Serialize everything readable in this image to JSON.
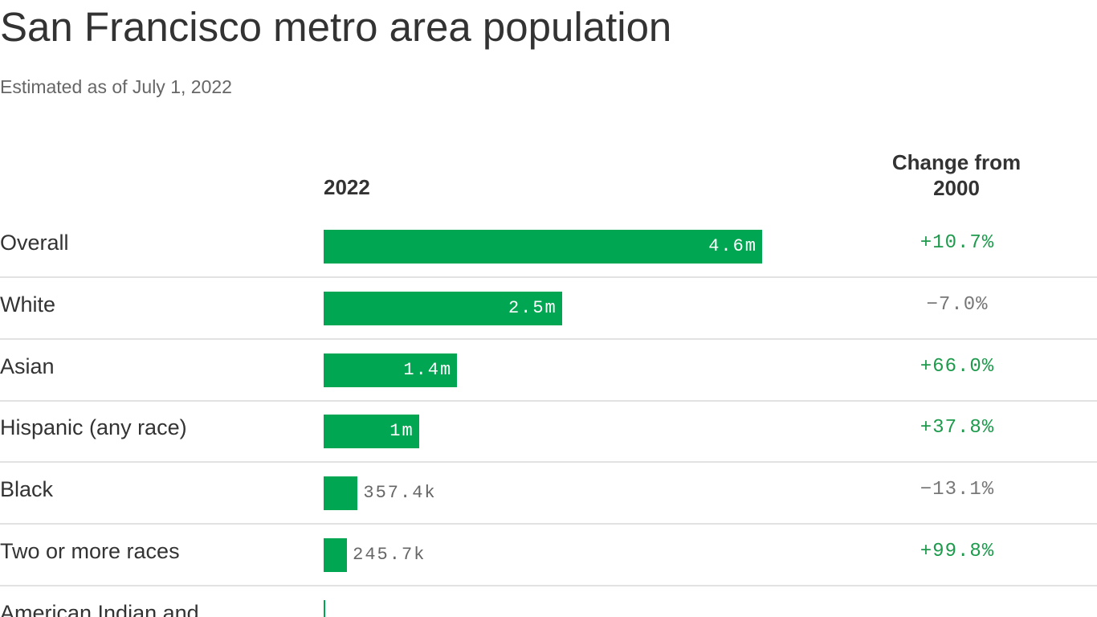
{
  "chart_data": {
    "type": "bar",
    "orientation": "horizontal",
    "title": "San Francisco metro area population",
    "subtitle": "Estimated as of July 1, 2022",
    "categories": [
      "Overall",
      "White",
      "Asian",
      "Hispanic (any race)",
      "Black",
      "Two or more races",
      "American Indian and"
    ],
    "series": [
      {
        "name": "2022",
        "color": "#00a651",
        "values": [
          4600000,
          2500000,
          1400000,
          1000000,
          357400,
          245700,
          20000
        ],
        "value_labels": [
          "4.6m",
          "2.5m",
          "1.4m",
          "1m",
          "357.4k",
          "245.7k",
          null
        ]
      },
      {
        "name": "Change from 2000",
        "positive_color": "#1d9a4c",
        "negative_color": "#777777",
        "values": [
          10.7,
          -7.0,
          66.0,
          37.8,
          -13.1,
          99.8,
          null
        ],
        "value_labels": [
          "+10.7%",
          "−7.0%",
          "+66.0%",
          "+37.8%",
          "−13.1%",
          "+99.8%",
          null
        ]
      }
    ]
  }
}
